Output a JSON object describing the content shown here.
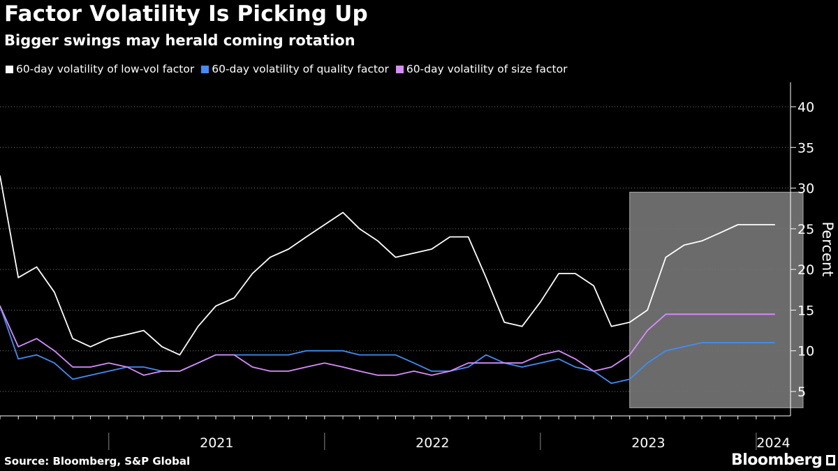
{
  "header": {
    "title": "Factor Volatility Is Picking Up",
    "subtitle": "Bigger swings may herald coming rotation"
  },
  "footer": {
    "source": "Source: Bloomberg, S&P Global",
    "brand": "Bloomberg"
  },
  "colors": {
    "background": "#000000",
    "low_vol": "#ffffff",
    "quality": "#3f8ef5",
    "size": "#d98cff",
    "highlight": "#6b6b6b"
  },
  "chart_data": {
    "type": "line",
    "title": "Factor Volatility Is Picking Up",
    "subtitle": "Bigger swings may herald coming rotation",
    "ylabel": "Percent",
    "ylim": [
      2,
      43
    ],
    "yticks": [
      5,
      10,
      15,
      20,
      25,
      30,
      35,
      40
    ],
    "xlim": [
      "2020-07-01",
      "2024-02-28"
    ],
    "x_tick_labels": [
      "2021",
      "2022",
      "2023",
      "2024"
    ],
    "y_axis_position": "right",
    "legend_position": "top-left",
    "grid": "horizontal dotted",
    "highlight_region": {
      "x": [
        "2023-06-01",
        "2024-02-28"
      ],
      "y": [
        3,
        29.5
      ]
    },
    "x": [
      "2020-07-01",
      "2020-08-01",
      "2020-09-01",
      "2020-10-01",
      "2020-11-01",
      "2020-12-01",
      "2021-01-01",
      "2021-02-01",
      "2021-03-01",
      "2021-04-01",
      "2021-05-01",
      "2021-06-01",
      "2021-07-01",
      "2021-08-01",
      "2021-09-01",
      "2021-10-01",
      "2021-11-01",
      "2021-12-01",
      "2022-01-01",
      "2022-02-01",
      "2022-03-01",
      "2022-04-01",
      "2022-05-01",
      "2022-06-01",
      "2022-07-01",
      "2022-08-01",
      "2022-09-01",
      "2022-10-01",
      "2022-11-01",
      "2022-12-01",
      "2023-01-01",
      "2023-02-01",
      "2023-03-01",
      "2023-04-01",
      "2023-05-01",
      "2023-06-01",
      "2023-07-01",
      "2023-08-01",
      "2023-09-01",
      "2023-10-01",
      "2023-11-01",
      "2023-12-01",
      "2024-01-01",
      "2024-02-01"
    ],
    "series": [
      {
        "name": "60-day volatility of low-vol factor",
        "values": [
          31.5,
          19,
          20.3,
          17.2,
          11.5,
          10.5,
          11.5,
          12,
          12.5,
          10.5,
          9.5,
          13,
          15.5,
          16.5,
          19.5,
          21.5,
          22.5,
          24,
          25.5,
          27,
          25,
          23.5,
          21.5,
          22,
          22.5,
          24,
          24,
          19,
          13.5,
          13,
          16,
          19.5,
          19.5,
          18,
          13,
          13.5,
          15,
          21.5,
          23,
          23.5,
          24.5,
          25.5,
          25.5,
          25.5
        ]
      },
      {
        "name": "60-day volatility of quality factor",
        "values": [
          15.5,
          9,
          9.5,
          8.5,
          6.5,
          7,
          7.5,
          8,
          8,
          7.5,
          7.5,
          8.5,
          9.5,
          9.5,
          9.5,
          9.5,
          9.5,
          10,
          10,
          10,
          9.5,
          9.5,
          9.5,
          8.5,
          7.5,
          7.5,
          8,
          9.5,
          8.5,
          8,
          8.5,
          9,
          8,
          7.5,
          6,
          6.5,
          8.5,
          10,
          10.5,
          11,
          11,
          11,
          11,
          11
        ]
      },
      {
        "name": "60-day volatility of size factor",
        "values": [
          15.5,
          10.5,
          11.5,
          10,
          8,
          8,
          8.5,
          8,
          7,
          7.5,
          7.5,
          8.5,
          9.5,
          9.5,
          8,
          7.5,
          7.5,
          8,
          8.5,
          8,
          7.5,
          7,
          7,
          7.5,
          7,
          7.5,
          8.5,
          8.5,
          8.5,
          8.5,
          9.5,
          10,
          9,
          7.5,
          8,
          9.5,
          12.5,
          14.5,
          14.5,
          14.5,
          14.5,
          14.5,
          14.5,
          14.5
        ]
      }
    ]
  }
}
